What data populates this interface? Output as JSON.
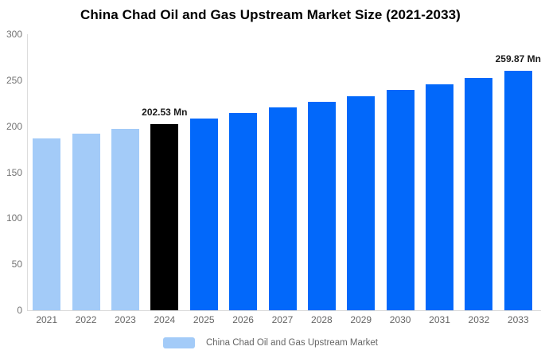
{
  "title": "China Chad Oil and Gas Upstream Market Size (2021-2033)",
  "legend": {
    "label": "China Chad Oil and Gas Upstream Market",
    "swatch_color": "#a3cbf8"
  },
  "chart_data": {
    "type": "bar",
    "title": "China Chad Oil and Gas Upstream Market Size (2021-2033)",
    "categories": [
      "2021",
      "2022",
      "2023",
      "2024",
      "2025",
      "2026",
      "2027",
      "2028",
      "2029",
      "2030",
      "2031",
      "2032",
      "2033"
    ],
    "values": [
      186.4,
      191.6,
      197.0,
      202.53,
      208.2,
      214.1,
      220.1,
      226.3,
      232.6,
      239.2,
      245.9,
      252.8,
      259.87
    ],
    "unit": "Mn",
    "data_labels": {
      "2024": "202.53 Mn",
      "2033": "259.87 Mn"
    },
    "ylim": [
      0,
      300
    ],
    "yticks": [
      0,
      50,
      100,
      150,
      200,
      250,
      300
    ],
    "grid": false,
    "legend_position": "bottom",
    "legend_entries": [
      "China Chad Oil and Gas Upstream Market"
    ],
    "colors": {
      "historical": "#a3cbf8",
      "highlight": "#000000",
      "forecast": "#0268fa"
    },
    "color_keys": [
      "historical",
      "historical",
      "historical",
      "highlight",
      "forecast",
      "forecast",
      "forecast",
      "forecast",
      "forecast",
      "forecast",
      "forecast",
      "forecast",
      "forecast"
    ],
    "axis_color": "#dddddd",
    "tick_label_color": "#737373"
  }
}
